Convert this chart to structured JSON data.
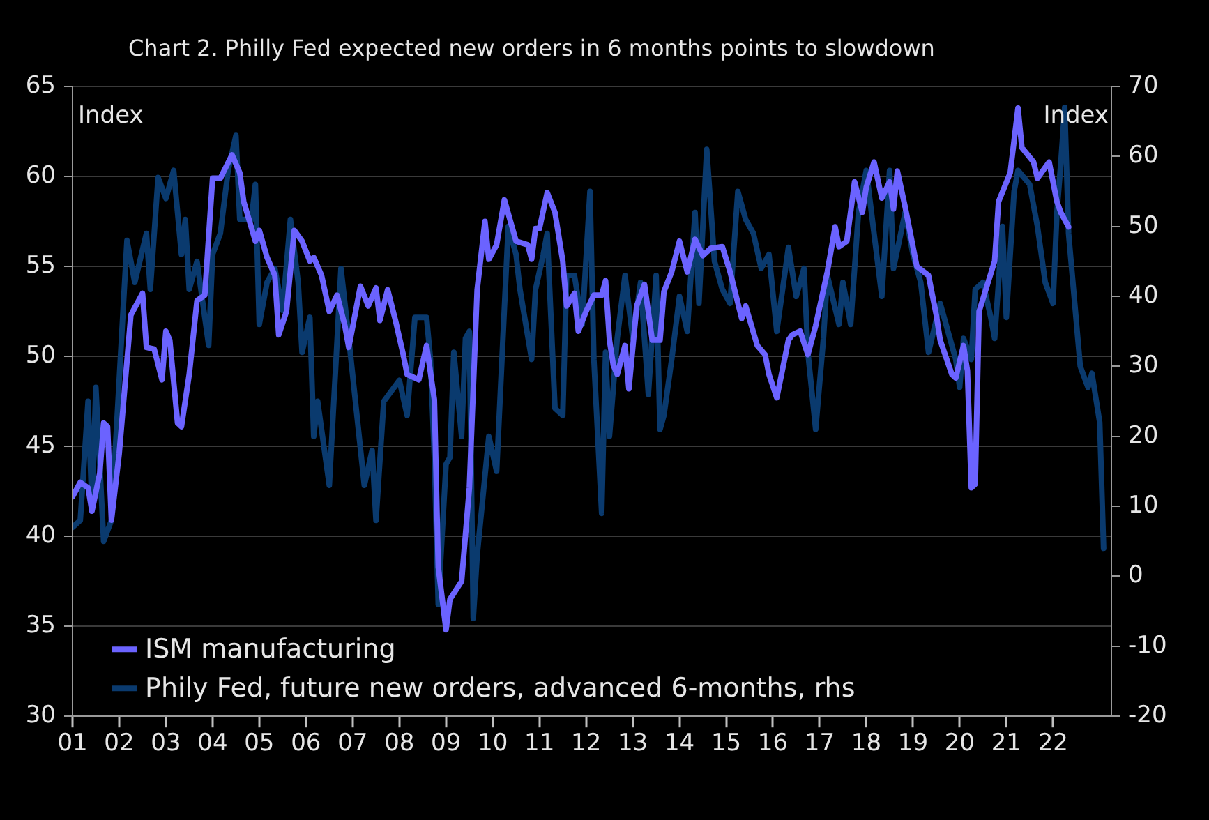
{
  "chart_data": {
    "type": "line",
    "title": "Chart 2. Philly Fed expected new orders in 6 months points to slowdown",
    "ylabel": "Index",
    "y2label": "Index",
    "xlim": [
      "2001",
      "2023-04"
    ],
    "xticks": [
      {
        "value": "2001",
        "label": "01"
      },
      {
        "value": "2002",
        "label": "02"
      },
      {
        "value": "2003",
        "label": "03"
      },
      {
        "value": "2004",
        "label": "04"
      },
      {
        "value": "2005",
        "label": "05"
      },
      {
        "value": "2006",
        "label": "06"
      },
      {
        "value": "2007",
        "label": "07"
      },
      {
        "value": "2008",
        "label": "08"
      },
      {
        "value": "2009",
        "label": "09"
      },
      {
        "value": "2010",
        "label": "10"
      },
      {
        "value": "2011",
        "label": "11"
      },
      {
        "value": "2012",
        "label": "12"
      },
      {
        "value": "2013",
        "label": "13"
      },
      {
        "value": "2014",
        "label": "14"
      },
      {
        "value": "2015",
        "label": "15"
      },
      {
        "value": "2016",
        "label": "16"
      },
      {
        "value": "2017",
        "label": "17"
      },
      {
        "value": "2018",
        "label": "18"
      },
      {
        "value": "2019",
        "label": "19"
      },
      {
        "value": "2020",
        "label": "20"
      },
      {
        "value": "2021",
        "label": "21"
      },
      {
        "value": "2022",
        "label": "22"
      }
    ],
    "ylim": [
      30,
      65
    ],
    "yticks": [
      30,
      35,
      40,
      45,
      50,
      55,
      60,
      65
    ],
    "y2lim": [
      -20,
      70
    ],
    "y2ticks": [
      -20,
      -10,
      0,
      10,
      20,
      30,
      40,
      50,
      60,
      70
    ],
    "grid": "y",
    "legend": "bottom left",
    "marker": "none",
    "line_style": "solid",
    "series": [
      {
        "name": "ISM manufacturing",
        "color": "#6b63ff",
        "x": [
          "2001-01",
          "2001-03",
          "2001-05",
          "2001-06",
          "2001-08",
          "2001-09",
          "2001-10",
          "2001-11",
          "2002-01",
          "2002-04",
          "2002-07",
          "2002-08",
          "2002-10",
          "2002-12",
          "2003-01",
          "2003-02",
          "2003-04",
          "2003-05",
          "2003-07",
          "2003-09",
          "2003-11",
          "2004-01",
          "2004-03",
          "2004-06",
          "2004-08",
          "2004-09",
          "2004-12",
          "2005-01",
          "2005-03",
          "2005-05",
          "2005-06",
          "2005-08",
          "2005-10",
          "2005-12",
          "2006-02",
          "2006-03",
          "2006-05",
          "2006-07",
          "2006-09",
          "2006-11",
          "2006-12",
          "2007-03",
          "2007-05",
          "2007-07",
          "2007-08",
          "2007-10",
          "2007-12",
          "2008-02",
          "2008-03",
          "2008-06",
          "2008-08",
          "2008-10",
          "2008-11",
          "2009-01",
          "2009-02",
          "2009-05",
          "2009-07",
          "2009-09",
          "2009-11",
          "2009-12",
          "2010-02",
          "2010-04",
          "2010-07",
          "2010-10",
          "2010-11",
          "2010-12",
          "2011-01",
          "2011-03",
          "2011-05",
          "2011-07",
          "2011-08",
          "2011-10",
          "2011-11",
          "2012-01",
          "2012-03",
          "2012-05",
          "2012-06",
          "2012-07",
          "2012-08",
          "2012-09",
          "2012-11",
          "2012-12",
          "2013-02",
          "2013-04",
          "2013-06",
          "2013-08",
          "2013-09",
          "2013-11",
          "2014-01",
          "2014-03",
          "2014-05",
          "2014-07",
          "2014-09",
          "2014-12",
          "2015-02",
          "2015-05",
          "2015-06",
          "2015-09",
          "2015-11",
          "2015-12",
          "2016-02",
          "2016-05",
          "2016-06",
          "2016-08",
          "2016-10",
          "2016-12",
          "2017-03",
          "2017-05",
          "2017-06",
          "2017-08",
          "2017-10",
          "2017-12",
          "2018-01",
          "2018-03",
          "2018-05",
          "2018-07",
          "2018-08",
          "2018-09",
          "2018-11",
          "2018-12",
          "2019-02",
          "2019-05",
          "2019-07",
          "2019-08",
          "2019-11",
          "2019-12",
          "2020-02",
          "2020-03",
          "2020-04",
          "2020-05",
          "2020-06",
          "2020-10",
          "2020-11",
          "2021-02",
          "2021-04",
          "2021-05",
          "2021-08",
          "2021-09",
          "2021-12",
          "2022-02",
          "2022-03",
          "2022-05"
        ],
        "values": [
          42.2,
          43.0,
          42.7,
          41.4,
          43.5,
          46.3,
          46.1,
          40.9,
          44.6,
          52.3,
          53.5,
          50.5,
          50.4,
          48.7,
          51.4,
          50.9,
          46.3,
          46.1,
          49.0,
          53.1,
          53.4,
          59.9,
          59.9,
          61.2,
          60.2,
          58.6,
          56.4,
          57.0,
          55.5,
          54.5,
          51.2,
          52.5,
          57.0,
          56.4,
          55.3,
          55.5,
          54.5,
          52.5,
          53.4,
          51.7,
          50.5,
          53.9,
          52.8,
          53.8,
          52.0,
          53.7,
          52.0,
          50.1,
          49.0,
          48.7,
          50.6,
          47.6,
          38.3,
          34.8,
          36.5,
          37.5,
          42.7,
          53.7,
          57.5,
          55.4,
          56.2,
          58.7,
          56.4,
          56.2,
          55.4,
          57.1,
          57.1,
          59.1,
          58.0,
          55.3,
          52.8,
          53.5,
          51.4,
          52.5,
          53.4,
          53.4,
          54.2,
          50.9,
          49.5,
          49.0,
          50.6,
          48.2,
          52.8,
          54.0,
          50.9,
          50.9,
          53.6,
          54.7,
          56.4,
          54.7,
          56.5,
          55.6,
          56.0,
          56.1,
          54.7,
          52.1,
          52.8,
          50.6,
          50.1,
          49.0,
          47.7,
          50.9,
          51.2,
          51.4,
          50.1,
          51.7,
          54.7,
          57.2,
          56.1,
          56.4,
          59.7,
          58.0,
          59.4,
          60.8,
          58.8,
          59.7,
          58.2,
          60.3,
          58.3,
          57.2,
          55.0,
          54.5,
          52.3,
          50.9,
          49.0,
          48.8,
          50.6,
          49.2,
          42.7,
          42.9,
          52.5,
          55.3,
          58.6,
          60.2,
          63.8,
          61.6,
          60.8,
          59.9,
          60.8,
          58.6,
          58.0,
          57.2
        ]
      },
      {
        "name": "Phily Fed, future new orders, advanced 6-months, rhs",
        "color": "#0a3a6e",
        "axis": "y2",
        "x": [
          "2001-01",
          "2001-03",
          "2001-05",
          "2001-06",
          "2001-07",
          "2001-09",
          "2001-11",
          "2002-03",
          "2002-05",
          "2002-08",
          "2002-09",
          "2002-11",
          "2003-01",
          "2003-03",
          "2003-05",
          "2003-06",
          "2003-07",
          "2003-09",
          "2003-12",
          "2004-01",
          "2004-03",
          "2004-05",
          "2004-07",
          "2004-08",
          "2004-11",
          "2004-12",
          "2005-01",
          "2005-03",
          "2005-05",
          "2005-07",
          "2005-09",
          "2005-11",
          "2005-12",
          "2006-02",
          "2006-03",
          "2006-04",
          "2006-07",
          "2006-10",
          "2006-12",
          "2007-04",
          "2007-06",
          "2007-07",
          "2007-09",
          "2008-01",
          "2008-03",
          "2008-05",
          "2008-08",
          "2008-09",
          "2008-10",
          "2008-11",
          "2009-01",
          "2009-02",
          "2009-03",
          "2009-05",
          "2009-06",
          "2009-07",
          "2009-08",
          "2009-09",
          "2009-12",
          "2010-02",
          "2010-05",
          "2010-07",
          "2010-08",
          "2010-11",
          "2010-12",
          "2011-02",
          "2011-03",
          "2011-05",
          "2011-07",
          "2011-08",
          "2011-10",
          "2011-12",
          "2012-02",
          "2012-03",
          "2012-05",
          "2012-06",
          "2012-07",
          "2012-09",
          "2012-11",
          "2013-01",
          "2013-03",
          "2013-05",
          "2013-07",
          "2013-08",
          "2013-09",
          "2013-11",
          "2014-01",
          "2014-03",
          "2014-05",
          "2014-06",
          "2014-08",
          "2014-10",
          "2014-12",
          "2015-02",
          "2015-04",
          "2015-06",
          "2015-08",
          "2015-10",
          "2015-12",
          "2016-02",
          "2016-05",
          "2016-07",
          "2016-09",
          "2016-10",
          "2016-12",
          "2017-02",
          "2017-03",
          "2017-06",
          "2017-07",
          "2017-09",
          "2017-11",
          "2018-01",
          "2018-05",
          "2018-07",
          "2018-08",
          "2018-11",
          "2019-01",
          "2019-03",
          "2019-05",
          "2019-08",
          "2019-09",
          "2019-12",
          "2020-01",
          "2020-02",
          "2020-04",
          "2020-05",
          "2020-07",
          "2020-09",
          "2020-10",
          "2020-12",
          "2021-01",
          "2021-03",
          "2021-04",
          "2021-07",
          "2021-09",
          "2021-11",
          "2022-01",
          "2022-02",
          "2022-03",
          "2022-04",
          "2022-05",
          "2022-08",
          "2022-10",
          "2022-11",
          "2023-01",
          "2023-02"
        ],
        "values": [
          7,
          8,
          25,
          10,
          27,
          5,
          8,
          48,
          42,
          49,
          41,
          57,
          54,
          58,
          46,
          51,
          41,
          45,
          33,
          46,
          49,
          58,
          63,
          51,
          51,
          56,
          36,
          42,
          44,
          38,
          51,
          42,
          32,
          37,
          20,
          25,
          13,
          44,
          34,
          13,
          18,
          8,
          25,
          28,
          23,
          37,
          37,
          31,
          17,
          -4,
          16,
          17,
          32,
          20,
          34,
          35,
          -6,
          3,
          20,
          15,
          50,
          46,
          41,
          31,
          41,
          46,
          49,
          24,
          23,
          43,
          43,
          36,
          55,
          31,
          9,
          32,
          20,
          34,
          43,
          34,
          42,
          26,
          43,
          21,
          23,
          31,
          40,
          35,
          52,
          39,
          61,
          45,
          41,
          39,
          55,
          51,
          49,
          44,
          46,
          35,
          47,
          40,
          44,
          32,
          21,
          34,
          43,
          36,
          42,
          36,
          52,
          58,
          40,
          58,
          44,
          52,
          46,
          42,
          32,
          39,
          37,
          31,
          27,
          34,
          31,
          41,
          42,
          37,
          34,
          50,
          37,
          55,
          58,
          56,
          50,
          42,
          39,
          52,
          59,
          67,
          49,
          30,
          27,
          29,
          22,
          4
        ]
      }
    ]
  }
}
